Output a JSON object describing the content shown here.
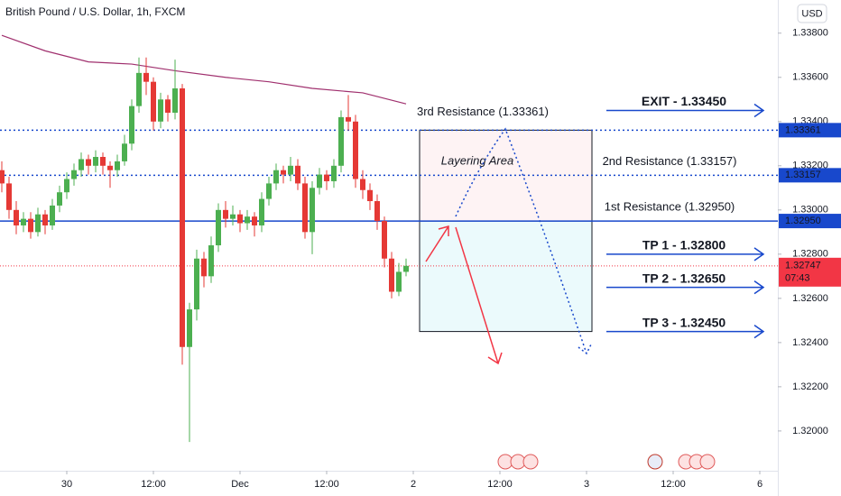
{
  "chart_data": {
    "type": "candlestick",
    "title": "British Pound / U.S. Dollar, 1h, FXCM",
    "currency": "USD",
    "countdown": "07:43",
    "up_color": "#4caf50",
    "down_color": "#e53935",
    "ylim": [
      1.3182,
      1.3395
    ],
    "yticks": [
      {
        "value": 1.338,
        "label": "1.33800"
      },
      {
        "value": 1.336,
        "label": "1.33600"
      },
      {
        "value": 1.334,
        "label": "1.33400"
      },
      {
        "value": 1.332,
        "label": "1.33200"
      },
      {
        "value": 1.33,
        "label": "1.33000"
      },
      {
        "value": 1.328,
        "label": "1.32800"
      },
      {
        "value": 1.326,
        "label": "1.32600"
      },
      {
        "value": 1.324,
        "label": "1.32400"
      },
      {
        "value": 1.322,
        "label": "1.32200"
      },
      {
        "value": 1.32,
        "label": "1.32000"
      }
    ],
    "xlim": [
      -0.25,
      107.5
    ],
    "xticks": [
      {
        "value": 9,
        "label": "30"
      },
      {
        "value": 21,
        "label": "12:00"
      },
      {
        "value": 33,
        "label": "Dec"
      },
      {
        "value": 45,
        "label": "12:00"
      },
      {
        "value": 57,
        "label": "2"
      },
      {
        "value": 69,
        "label": "12:00"
      },
      {
        "value": 81,
        "label": "3"
      },
      {
        "value": 93,
        "label": "12:00"
      },
      {
        "value": 105,
        "label": "6"
      }
    ],
    "candles": [
      [
        1.3318,
        1.3322,
        1.3308,
        1.3312
      ],
      [
        1.3312,
        1.3315,
        1.3296,
        1.33
      ],
      [
        1.33,
        1.3304,
        1.3289,
        1.3293
      ],
      [
        1.3293,
        1.3299,
        1.329,
        1.3296
      ],
      [
        1.3296,
        1.3299,
        1.3287,
        1.329
      ],
      [
        1.329,
        1.3301,
        1.3288,
        1.3298
      ],
      [
        1.3298,
        1.33,
        1.3289,
        1.3293
      ],
      [
        1.3293,
        1.3305,
        1.3291,
        1.3302
      ],
      [
        1.3302,
        1.3311,
        1.3299,
        1.3308
      ],
      [
        1.3308,
        1.3317,
        1.3305,
        1.3314
      ],
      [
        1.3314,
        1.3321,
        1.3311,
        1.3318
      ],
      [
        1.3318,
        1.3326,
        1.3315,
        1.3323
      ],
      [
        1.3323,
        1.3325,
        1.3316,
        1.332
      ],
      [
        1.332,
        1.3327,
        1.3317,
        1.3324
      ],
      [
        1.3324,
        1.3326,
        1.3316,
        1.332
      ],
      [
        1.332,
        1.3322,
        1.331,
        1.3318
      ],
      [
        1.3318,
        1.3325,
        1.3315,
        1.3322
      ],
      [
        1.3322,
        1.3334,
        1.332,
        1.333
      ],
      [
        1.333,
        1.335,
        1.3327,
        1.3347
      ],
      [
        1.3347,
        1.3369,
        1.3344,
        1.3362
      ],
      [
        1.3362,
        1.3369,
        1.3352,
        1.3358
      ],
      [
        1.3358,
        1.336,
        1.3336,
        1.334
      ],
      [
        1.334,
        1.3353,
        1.3337,
        1.335
      ],
      [
        1.335,
        1.3352,
        1.334,
        1.3344
      ],
      [
        1.3344,
        1.3368,
        1.3341,
        1.3355
      ],
      [
        1.3355,
        1.3357,
        1.323,
        1.3238
      ],
      [
        1.3238,
        1.3258,
        1.3195,
        1.3255
      ],
      [
        1.3255,
        1.3282,
        1.325,
        1.3278
      ],
      [
        1.3278,
        1.3281,
        1.3265,
        1.327
      ],
      [
        1.327,
        1.3288,
        1.3267,
        1.3284
      ],
      [
        1.3284,
        1.3303,
        1.3281,
        1.33
      ],
      [
        1.33,
        1.3304,
        1.3292,
        1.3296
      ],
      [
        1.3296,
        1.3302,
        1.3293,
        1.3298
      ],
      [
        1.3298,
        1.33,
        1.329,
        1.3294
      ],
      [
        1.3294,
        1.33,
        1.3291,
        1.3297
      ],
      [
        1.3297,
        1.3299,
        1.3288,
        1.3293
      ],
      [
        1.3293,
        1.3308,
        1.329,
        1.3305
      ],
      [
        1.3305,
        1.3315,
        1.3302,
        1.3312
      ],
      [
        1.3312,
        1.3321,
        1.3309,
        1.3318
      ],
      [
        1.3318,
        1.332,
        1.3312,
        1.3316
      ],
      [
        1.3316,
        1.3324,
        1.3313,
        1.332
      ],
      [
        1.332,
        1.3323,
        1.3309,
        1.3312
      ],
      [
        1.3312,
        1.3315,
        1.3287,
        1.329
      ],
      [
        1.329,
        1.3313,
        1.328,
        1.331
      ],
      [
        1.331,
        1.3319,
        1.3307,
        1.3316
      ],
      [
        1.3316,
        1.3318,
        1.3309,
        1.3313
      ],
      [
        1.3313,
        1.3323,
        1.331,
        1.332
      ],
      [
        1.332,
        1.3345,
        1.3317,
        1.3342
      ],
      [
        1.3342,
        1.3352,
        1.3336,
        1.334
      ],
      [
        1.334,
        1.3343,
        1.331,
        1.3314
      ],
      [
        1.3314,
        1.3318,
        1.3305,
        1.3309
      ],
      [
        1.3309,
        1.3312,
        1.33,
        1.3304
      ],
      [
        1.3304,
        1.3307,
        1.3291,
        1.3295
      ],
      [
        1.3295,
        1.3297,
        1.3274,
        1.3278
      ],
      [
        1.3278,
        1.3281,
        1.326,
        1.3263
      ],
      [
        1.3263,
        1.3276,
        1.3261,
        1.3272
      ],
      [
        1.3272,
        1.3278,
        1.327,
        1.32747
      ]
    ],
    "moving_average": {
      "color": "#a0306e",
      "x": [
        0,
        6,
        12,
        18,
        24,
        31,
        37,
        43,
        50,
        56
      ],
      "values": [
        1.3379,
        1.3372,
        1.3367,
        1.3366,
        1.3363,
        1.336,
        1.3358,
        1.3355,
        1.3353,
        1.3348
      ]
    },
    "levels": [
      {
        "value": 1.33361,
        "label": "1.33361",
        "style": "dotted",
        "color": "#1848cc",
        "note": "3rd Resistance (1.33361)"
      },
      {
        "value": 1.33157,
        "label": "1.33157",
        "style": "dotted",
        "color": "#1848cc",
        "note": "2nd Resistance (1.33157)"
      },
      {
        "value": 1.3295,
        "label": "1.32950",
        "style": "solid",
        "color": "#1848cc",
        "note": "1st Resistance (1.32950)"
      },
      {
        "value": 1.32747,
        "label": "1.32747",
        "style": "price",
        "color": "#f23645"
      }
    ],
    "targets": [
      {
        "value": 1.3345,
        "text": "EXIT - 1.33450",
        "color": "#f23645"
      },
      {
        "value": 1.328,
        "text": "TP 1 - 1.32800",
        "color": "#089981"
      },
      {
        "value": 1.3265,
        "text": "TP 2 - 1.32650",
        "color": "#089981"
      },
      {
        "value": 1.3245,
        "text": "TP 3 - 1.32450",
        "color": "#089981"
      }
    ],
    "zone_label": "Layering Area"
  }
}
